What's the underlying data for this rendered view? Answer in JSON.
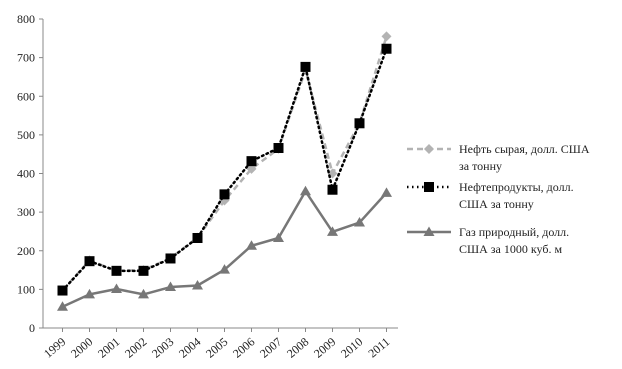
{
  "chart_data": {
    "type": "line",
    "title": "",
    "xlabel": "",
    "ylabel": "",
    "x": [
      "1999",
      "2000",
      "2001",
      "2002",
      "2003",
      "2004",
      "2005",
      "2006",
      "2007",
      "2008",
      "2009",
      "2010",
      "2011"
    ],
    "ylim": [
      0,
      800
    ],
    "yticks": [
      0,
      100,
      200,
      300,
      400,
      500,
      600,
      700,
      800
    ],
    "grid": false,
    "legend_position": "right",
    "series": [
      {
        "name": "Нефть сырая, долл. США за тонну",
        "name_lines": [
          "Нефть сырая, долл. США",
          "за тонну"
        ],
        "values": [
          97,
          175,
          148,
          150,
          181,
          234,
          330,
          412,
          464,
          668,
          400,
          530,
          755
        ],
        "color": "#b3b3b3",
        "line_style": "dashed",
        "marker": "diamond"
      },
      {
        "name": "Нефтепродукты, долл. США за тонну",
        "name_lines": [
          "Нефтепродукты, долл.",
          "США за тонну"
        ],
        "values": [
          97,
          173,
          148,
          148,
          180,
          233,
          346,
          432,
          466,
          676,
          358,
          530,
          723
        ],
        "color": "#000000",
        "line_style": "dotted",
        "marker": "square"
      },
      {
        "name": "Газ природный, долл. США за 1000 куб. м",
        "name_lines": [
          "Газ природный, долл.",
          "США за 1000 куб. м"
        ],
        "values": [
          55,
          87,
          101,
          87,
          106,
          110,
          151,
          213,
          233,
          354,
          249,
          273,
          350
        ],
        "color": "#777777",
        "line_style": "solid",
        "marker": "triangle"
      }
    ]
  }
}
